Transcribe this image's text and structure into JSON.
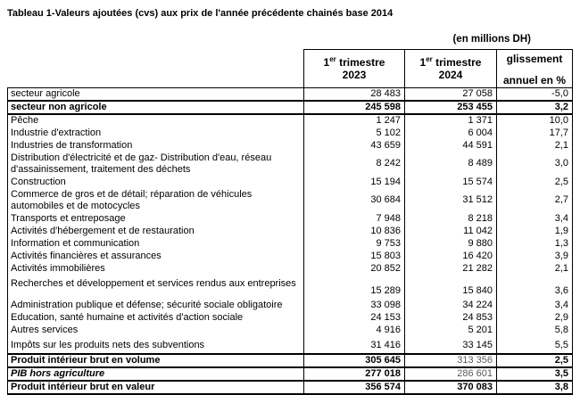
{
  "page": {
    "title": "Tableau 1-Valeurs ajoutées (cvs) aux prix de l'année précédente chainés base 2014",
    "units_note": "(en millions DH)"
  },
  "table": {
    "header": {
      "col_2023": {
        "num": "1",
        "sup": "er",
        "rest": " trimestre",
        "year": "2023"
      },
      "col_2024": {
        "num": "1",
        "sup": "er",
        "rest": " trimestre",
        "year": "2024"
      },
      "col_yoy": {
        "line1": "glissement",
        "line2": "annuel en %"
      }
    },
    "rows": [
      {
        "label": "secteur agricole",
        "v2023": "28 483",
        "v2024": "27 058",
        "yoy": "-5,0",
        "cls": "first"
      },
      {
        "label": "secteur non agricole",
        "v2023": "245 598",
        "v2024": "253 455",
        "yoy": "3,2",
        "cls": "emph"
      },
      {
        "label": "Pêche",
        "v2023": "1 247",
        "v2024": "1 371",
        "yoy": "10,0",
        "cls": ""
      },
      {
        "label": "Industrie d'extraction",
        "v2023": "5 102",
        "v2024": "6 004",
        "yoy": "17,7",
        "cls": ""
      },
      {
        "label": "Industries de transformation",
        "v2023": "43 659",
        "v2024": "44 591",
        "yoy": "2,1",
        "cls": ""
      },
      {
        "label": "Distribution d'électricité et de gaz- Distribution d'eau, réseau d'assainissement, traitement des déchets",
        "v2023": "8 242",
        "v2024": "8 489",
        "yoy": "3,0",
        "cls": "double"
      },
      {
        "label": "Construction",
        "v2023": "15 194",
        "v2024": "15 574",
        "yoy": "2,5",
        "cls": ""
      },
      {
        "label": "Commerce de gros et de détail; réparation de véhicules automobiles et de motocycles",
        "v2023": "30 684",
        "v2024": "31 512",
        "yoy": "2,7",
        "cls": "double"
      },
      {
        "label": "Transports et entreposage",
        "v2023": "7 948",
        "v2024": "8 218",
        "yoy": "3,4",
        "cls": ""
      },
      {
        "label": "Activités d'hébergement et de restauration",
        "v2023": "10 836",
        "v2024": "11 042",
        "yoy": "1,9",
        "cls": ""
      },
      {
        "label": "Information et communication",
        "v2023": "9 753",
        "v2024": "9 880",
        "yoy": "1,3",
        "cls": ""
      },
      {
        "label": "Activités financières et assurances",
        "v2023": "15 803",
        "v2024": "16 420",
        "yoy": "3,9",
        "cls": ""
      },
      {
        "label": "Activités immobilières",
        "v2023": "20 852",
        "v2024": "21 282",
        "yoy": "2,1",
        "cls": ""
      },
      {
        "label": "Recherches et développement et services rendus aux entreprises",
        "v2023": "15 289",
        "v2024": "15 840",
        "yoy": "3,6",
        "cls": "spacer"
      },
      {
        "label": "Administration publique et défense; sécurité sociale obligatoire",
        "v2023": "33 098",
        "v2024": "34 224",
        "yoy": "3,4",
        "cls": ""
      },
      {
        "label": "Education, santé humaine et activités d'action sociale",
        "v2023": "24 153",
        "v2024": "24 853",
        "yoy": "2,9",
        "cls": ""
      },
      {
        "label": "Autres services",
        "v2023": "4 916",
        "v2024": "5 201",
        "yoy": "5,8",
        "cls": ""
      },
      {
        "label": "Impôts sur les produits nets des subventions",
        "v2023": "31 416",
        "v2024": "33 145",
        "yoy": "5,5",
        "cls": "medium"
      },
      {
        "label": "Produit intérieur brut en volume",
        "v2023": "305 645",
        "v2024": "313 356",
        "yoy": "2,5",
        "cls": "total",
        "muted2024": true
      },
      {
        "label": "PIB hors agriculture",
        "v2023": "277 018",
        "v2024": "286 601",
        "yoy": "3,5",
        "cls": "total italic",
        "muted2024": true
      },
      {
        "label": "Produit intérieur brut en valeur",
        "v2023": "356 574",
        "v2024": "370 083",
        "yoy": "3,8",
        "cls": "total last"
      }
    ]
  }
}
